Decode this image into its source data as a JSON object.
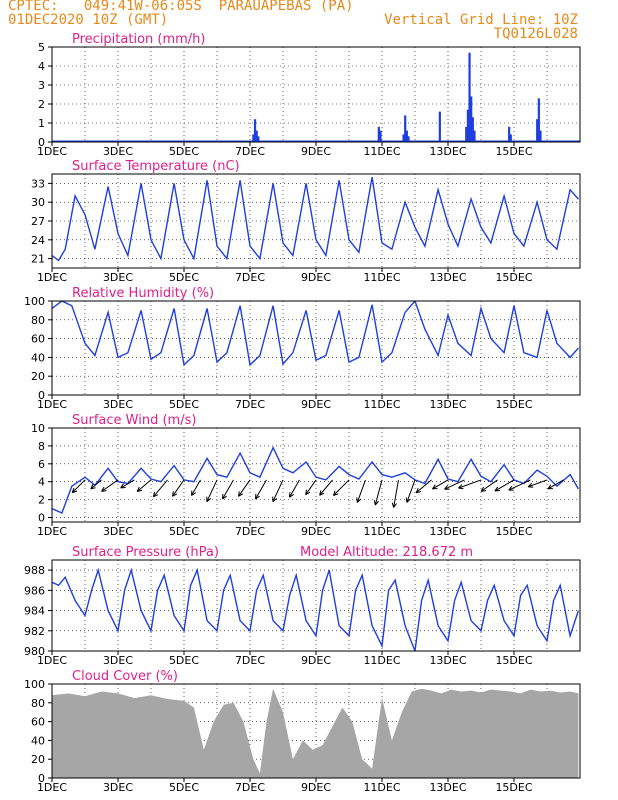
{
  "header": {
    "line1_left": "CPTEC:   049:41W-06:05S  PARAUAPEBAS (PA)",
    "line2_left": "01DEC2020 10Z (GMT)",
    "line2_right": "Vertical Grid Line: 10Z",
    "line3_right": "TQ0126L028"
  },
  "colors": {
    "accent": "#e8891a",
    "title": "#e0208a",
    "line": "#1f3fe0",
    "cloud": "#a6a6a6",
    "wind": "#000000"
  },
  "x_tick_labels": [
    "1DEC",
    "3DEC",
    "5DEC",
    "7DEC",
    "9DEC",
    "11DEC",
    "13DEC",
    "15DEC"
  ],
  "chart_data": [
    {
      "type": "bar",
      "title": "Precipitation (mm/h)",
      "ylim": [
        0,
        5
      ],
      "yticks": [
        0,
        1,
        2,
        3,
        4,
        5
      ],
      "x_unit": "days since 01DEC2020 10Z",
      "bars": [
        [
          6.1,
          0.4
        ],
        [
          6.15,
          1.2
        ],
        [
          6.2,
          0.6
        ],
        [
          6.25,
          0.3
        ],
        [
          9.9,
          0.8
        ],
        [
          9.95,
          0.6
        ],
        [
          10.65,
          0.4
        ],
        [
          10.7,
          1.4
        ],
        [
          10.75,
          0.6
        ],
        [
          10.8,
          0.3
        ],
        [
          11.75,
          1.6
        ],
        [
          12.55,
          0.8
        ],
        [
          12.6,
          1.7
        ],
        [
          12.65,
          4.7
        ],
        [
          12.7,
          2.4
        ],
        [
          12.75,
          1.3
        ],
        [
          12.8,
          0.6
        ],
        [
          13.85,
          0.8
        ],
        [
          13.9,
          0.4
        ],
        [
          14.7,
          1.2
        ],
        [
          14.75,
          2.3
        ],
        [
          14.8,
          0.6
        ]
      ]
    },
    {
      "type": "line",
      "title": "Surface Temperature (nC)",
      "ylim": [
        19.5,
        34.5
      ],
      "yticks": [
        21,
        24,
        27,
        30,
        33
      ],
      "x": [
        0,
        0.2,
        0.4,
        0.7,
        1,
        1.3,
        1.7,
        2,
        2.3,
        2.7,
        3,
        3.3,
        3.7,
        4,
        4.3,
        4.7,
        5,
        5.3,
        5.7,
        6,
        6.3,
        6.7,
        7,
        7.3,
        7.7,
        8,
        8.3,
        8.7,
        9,
        9.3,
        9.7,
        10,
        10.3,
        10.7,
        11,
        11.3,
        11.7,
        12,
        12.3,
        12.7,
        13,
        13.3,
        13.7,
        14,
        14.3,
        14.7,
        15,
        15.3,
        15.7,
        15.95
      ],
      "values": [
        21.5,
        20.7,
        22.5,
        31.0,
        28.0,
        22.5,
        32.5,
        25.0,
        21.5,
        33.0,
        24.0,
        21.0,
        33.0,
        24.0,
        21.0,
        33.5,
        23.0,
        21.0,
        33.5,
        23.0,
        21.0,
        33.0,
        23.5,
        21.5,
        33.0,
        24.0,
        21.5,
        33.5,
        24.0,
        22.0,
        34.0,
        23.5,
        22.5,
        30.0,
        26.0,
        23.0,
        32.0,
        26.5,
        23.0,
        30.5,
        26.0,
        23.5,
        31.0,
        25.0,
        23.0,
        30.0,
        24.0,
        22.5,
        32.0,
        30.5
      ]
    },
    {
      "type": "line",
      "title": "Relative Humidity (%)",
      "ylim": [
        0,
        100
      ],
      "yticks": [
        0,
        20,
        40,
        60,
        80,
        100
      ],
      "x": [
        0,
        0.3,
        0.6,
        1,
        1.3,
        1.7,
        2,
        2.3,
        2.7,
        3,
        3.3,
        3.7,
        4,
        4.3,
        4.7,
        5,
        5.3,
        5.7,
        6,
        6.3,
        6.7,
        7,
        7.3,
        7.7,
        8,
        8.3,
        8.7,
        9,
        9.3,
        9.7,
        10,
        10.3,
        10.7,
        11,
        11.3,
        11.7,
        12,
        12.3,
        12.7,
        13,
        13.3,
        13.7,
        14,
        14.3,
        14.7,
        15,
        15.3,
        15.7,
        15.95
      ],
      "values": [
        92,
        100,
        95,
        55,
        42,
        88,
        40,
        45,
        90,
        38,
        45,
        92,
        32,
        42,
        92,
        35,
        45,
        95,
        32,
        42,
        95,
        33,
        45,
        90,
        37,
        42,
        90,
        35,
        40,
        96,
        35,
        45,
        88,
        100,
        70,
        42,
        85,
        55,
        42,
        92,
        60,
        45,
        95,
        45,
        40,
        90,
        55,
        40,
        50
      ]
    },
    {
      "type": "line",
      "title": "Surface Wind (m/s)",
      "ylim": [
        -0.5,
        10
      ],
      "yticks": [
        0,
        2,
        4,
        6,
        8,
        10
      ],
      "x": [
        0,
        0.3,
        0.6,
        1,
        1.3,
        1.7,
        2,
        2.3,
        2.7,
        3,
        3.3,
        3.7,
        4,
        4.3,
        4.7,
        5,
        5.3,
        5.7,
        6,
        6.3,
        6.7,
        7,
        7.3,
        7.7,
        8,
        8.3,
        8.7,
        9,
        9.3,
        9.7,
        10,
        10.3,
        10.7,
        11,
        11.3,
        11.7,
        12,
        12.3,
        12.7,
        13,
        13.3,
        13.7,
        14,
        14.3,
        14.7,
        15,
        15.3,
        15.7,
        15.95
      ],
      "values": [
        1.0,
        0.5,
        3.5,
        4.5,
        3.6,
        5.5,
        4.0,
        3.8,
        5.5,
        4.3,
        4.0,
        5.8,
        4.2,
        4.0,
        6.6,
        4.8,
        4.5,
        7.2,
        5.0,
        4.5,
        7.8,
        5.5,
        5.0,
        6.2,
        4.5,
        4.2,
        5.7,
        4.8,
        4.3,
        6.2,
        4.8,
        4.5,
        5.0,
        4.2,
        3.8,
        6.5,
        4.3,
        4.0,
        6.5,
        4.6,
        4.0,
        5.9,
        4.2,
        3.8,
        5.3,
        4.6,
        3.5,
        4.8,
        3.2
      ],
      "barbs_at": [
        1,
        1.5,
        2,
        2.5,
        3,
        3.5,
        4,
        4.5,
        5,
        5.5,
        6,
        6.5,
        7,
        7.5,
        8,
        8.5,
        9,
        9.5,
        10,
        10.5,
        11,
        11.5,
        12,
        12.5,
        13,
        13.5,
        14,
        14.5,
        15,
        15.5
      ],
      "barb_dirs": [
        225,
        230,
        235,
        240,
        230,
        220,
        215,
        210,
        205,
        210,
        215,
        210,
        205,
        210,
        215,
        220,
        225,
        200,
        195,
        190,
        200,
        230,
        240,
        245,
        250,
        235,
        240,
        245,
        250,
        240
      ],
      "barb_len": [
        18,
        14,
        20,
        16,
        18,
        22,
        20,
        18,
        24,
        22,
        20,
        22,
        24,
        20,
        18,
        20,
        22,
        24,
        26,
        28,
        24,
        20,
        18,
        22,
        24,
        20,
        22,
        24,
        20,
        18
      ]
    },
    {
      "type": "line",
      "title": "Surface Pressure (hPa)",
      "annotation": "Model Altitude: 218.672 m",
      "ylim": [
        980,
        989
      ],
      "yticks": [
        980,
        982,
        984,
        986,
        988
      ],
      "x": [
        0,
        0.2,
        0.4,
        0.7,
        1,
        1.2,
        1.4,
        1.7,
        2,
        2.2,
        2.4,
        2.7,
        3,
        3.2,
        3.4,
        3.7,
        4,
        4.2,
        4.4,
        4.7,
        5,
        5.2,
        5.4,
        5.7,
        6,
        6.2,
        6.4,
        6.7,
        7,
        7.2,
        7.4,
        7.7,
        8,
        8.2,
        8.4,
        8.7,
        9,
        9.2,
        9.4,
        9.7,
        10,
        10.2,
        10.4,
        10.7,
        11,
        11.2,
        11.4,
        11.7,
        12,
        12.2,
        12.4,
        12.7,
        13,
        13.2,
        13.4,
        13.7,
        14,
        14.2,
        14.4,
        14.7,
        15,
        15.2,
        15.4,
        15.7,
        15.95
      ],
      "values": [
        986.8,
        986.5,
        987.3,
        985.0,
        983.5,
        986.0,
        988.0,
        984.0,
        982.0,
        986.0,
        988.0,
        984.0,
        982.0,
        986.0,
        987.5,
        983.5,
        982.0,
        986.5,
        988.0,
        983.0,
        982.0,
        986.0,
        987.5,
        983.0,
        982.0,
        986.0,
        987.5,
        983.0,
        982.0,
        985.5,
        987.5,
        983.0,
        981.5,
        986.0,
        988.0,
        982.5,
        981.5,
        986.0,
        987.5,
        982.5,
        980.5,
        986.0,
        987.0,
        982.5,
        980.0,
        985.0,
        987.0,
        982.5,
        981.0,
        985.0,
        986.8,
        983.0,
        982.0,
        985.0,
        986.5,
        983.0,
        981.5,
        985.5,
        986.5,
        982.5,
        981.0,
        985.0,
        986.5,
        981.5,
        984.0
      ]
    },
    {
      "type": "area",
      "title": "Cloud Cover (%)",
      "ylim": [
        0,
        100
      ],
      "yticks": [
        0,
        20,
        40,
        60,
        80,
        100
      ],
      "x": [
        0,
        0.5,
        1,
        1.5,
        2,
        2.5,
        3,
        3.5,
        4,
        4.3,
        4.6,
        4.9,
        5.2,
        5.5,
        5.8,
        6.1,
        6.3,
        6.5,
        6.7,
        7.0,
        7.3,
        7.6,
        7.9,
        8.2,
        8.5,
        8.8,
        9.1,
        9.4,
        9.7,
        10.0,
        10.3,
        10.6,
        10.9,
        11.2,
        11.5,
        11.8,
        12.1,
        12.4,
        12.7,
        13.0,
        13.3,
        13.6,
        13.9,
        14.2,
        14.5,
        14.8,
        15.1,
        15.4,
        15.7,
        15.95
      ],
      "values": [
        88,
        90,
        87,
        92,
        90,
        85,
        88,
        84,
        82,
        75,
        30,
        60,
        78,
        80,
        60,
        20,
        5,
        60,
        95,
        70,
        20,
        40,
        30,
        35,
        55,
        75,
        60,
        20,
        10,
        85,
        40,
        70,
        92,
        95,
        93,
        90,
        94,
        92,
        93,
        91,
        94,
        93,
        92,
        90,
        94,
        92,
        93,
        91,
        92,
        90
      ]
    }
  ]
}
